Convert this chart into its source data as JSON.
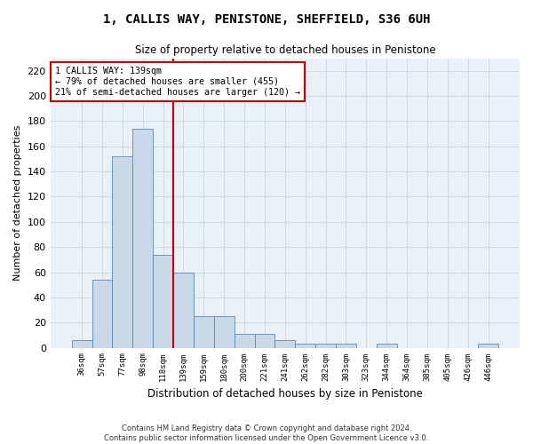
{
  "title": "1, CALLIS WAY, PENISTONE, SHEFFIELD, S36 6UH",
  "subtitle": "Size of property relative to detached houses in Penistone",
  "xlabel": "Distribution of detached houses by size in Penistone",
  "ylabel": "Number of detached properties",
  "bar_color": "#c9d9ea",
  "bar_edge_color": "#5a8ab0",
  "grid_color": "#d0d8e4",
  "background_color": "#eaf0f8",
  "annotation_line_color": "#cc0000",
  "annotation_box_color": "#cc0000",
  "annotation_text": "1 CALLIS WAY: 139sqm\n← 79% of detached houses are smaller (455)\n21% of semi-detached houses are larger (120) →",
  "property_size_sqm": 139,
  "categories": [
    "36sqm",
    "57sqm",
    "77sqm",
    "98sqm",
    "118sqm",
    "139sqm",
    "159sqm",
    "180sqm",
    "200sqm",
    "221sqm",
    "241sqm",
    "262sqm",
    "282sqm",
    "303sqm",
    "323sqm",
    "344sqm",
    "364sqm",
    "385sqm",
    "405sqm",
    "426sqm",
    "446sqm"
  ],
  "values": [
    6,
    54,
    152,
    174,
    74,
    60,
    25,
    25,
    11,
    11,
    6,
    3,
    3,
    3,
    0,
    3,
    0,
    0,
    0,
    0,
    3
  ],
  "ylim": [
    0,
    230
  ],
  "yticks": [
    0,
    20,
    40,
    60,
    80,
    100,
    120,
    140,
    160,
    180,
    200,
    220
  ],
  "marker_bin_index": 5,
  "footer_line1": "Contains HM Land Registry data © Crown copyright and database right 2024.",
  "footer_line2": "Contains public sector information licensed under the Open Government Licence v3.0."
}
